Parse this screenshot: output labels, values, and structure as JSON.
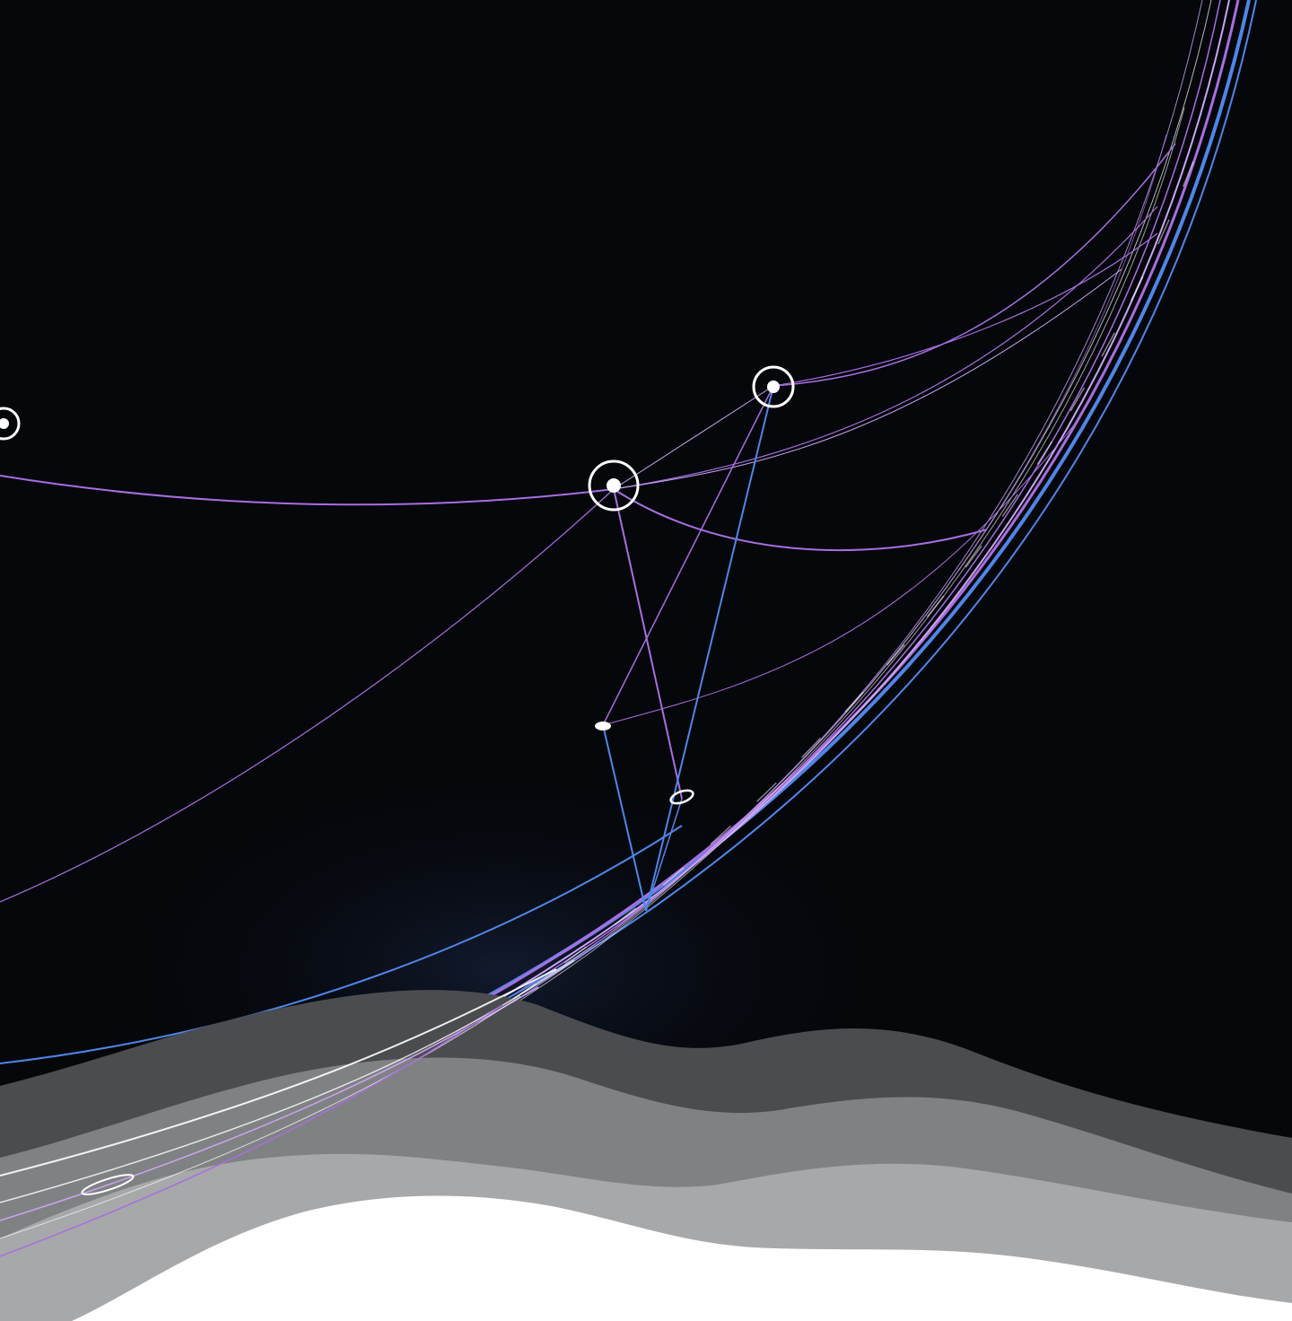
{
  "scene": {
    "description_tag": "abstract-network-illustration",
    "colors": {
      "background": "#05070b",
      "purple": "#a86ee0",
      "violet_light": "#c9a6f2",
      "blue": "#4f86e8",
      "white": "#ffffff",
      "wave_dark": "#4b4c4f",
      "wave_mid": "#808183",
      "wave_light": "#a7a8aa",
      "wave_white": "#ffffff"
    },
    "node_count": 6,
    "wave_layers": 4
  }
}
